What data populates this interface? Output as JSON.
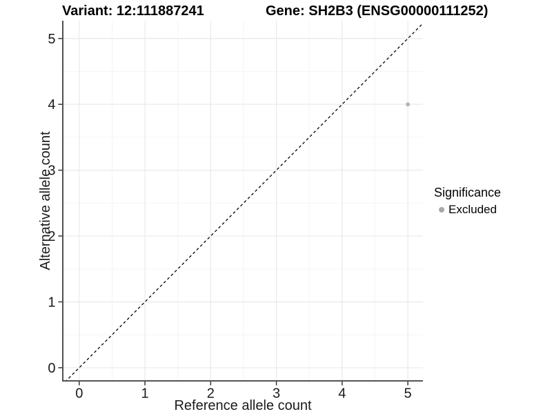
{
  "chart_data": {
    "type": "scatter",
    "title_left": "Variant: 12:111887241",
    "title_right": "Gene: SH2B3 (ENSG00000111252)",
    "xlabel": "Reference allele count",
    "ylabel": "Alternative allele count",
    "x_ticks": [
      0,
      1,
      2,
      3,
      4,
      5
    ],
    "y_ticks": [
      0,
      1,
      2,
      3,
      4,
      5
    ],
    "xlim": [
      -0.25,
      5.23
    ],
    "ylim": [
      -0.2,
      5.27
    ],
    "minor_grid_step": 0.5,
    "grid": true,
    "points": [
      {
        "x": 5,
        "y": 4,
        "significance": "Excluded"
      }
    ],
    "reference_line": {
      "type": "identity",
      "slope": 1,
      "intercept": 0,
      "style": "dashed",
      "color": "#000000"
    },
    "point_color": "#b6b6b6",
    "point_radius": 3,
    "legend": {
      "title": "Significance",
      "position": "right",
      "items": [
        {
          "label": "Excluded",
          "color": "#a8a8a8"
        }
      ]
    }
  },
  "colors": {
    "background": "#ffffff",
    "grid_major": "#e9e9e9",
    "grid_minor": "#f3f3f3",
    "axis_line": "#3c3c3c",
    "tick": "#333333",
    "tick_label": "#1a1a1a"
  }
}
